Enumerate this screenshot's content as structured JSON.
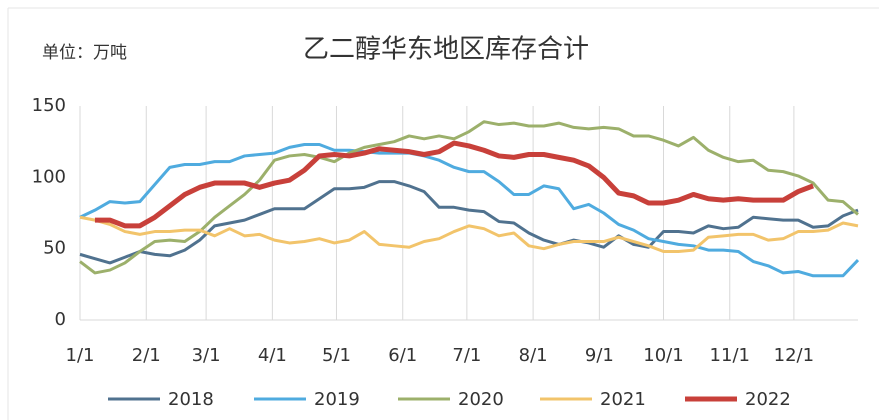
{
  "chart_data": {
    "type": "line",
    "title": "乙二醇华东地区库存合计",
    "unit_label": "单位：万吨",
    "x": [
      1,
      8,
      15,
      22,
      29,
      36,
      43,
      50,
      57,
      64,
      71,
      78,
      85,
      92,
      99,
      106,
      113,
      120,
      127,
      134,
      141,
      148,
      155,
      162,
      169,
      176,
      183,
      190,
      197,
      204,
      211,
      218,
      225,
      232,
      239,
      246,
      253,
      260,
      267,
      274,
      281,
      288,
      295,
      302,
      309,
      316,
      323,
      330,
      337,
      344,
      351,
      358,
      365
    ],
    "xlim": [
      1,
      365
    ],
    "xticks": [
      {
        "value": 1,
        "label": "1/1"
      },
      {
        "value": 32,
        "label": "2/1"
      },
      {
        "value": 60,
        "label": "3/1"
      },
      {
        "value": 91,
        "label": "4/1"
      },
      {
        "value": 121,
        "label": "5/1"
      },
      {
        "value": 152,
        "label": "6/1"
      },
      {
        "value": 182,
        "label": "7/1"
      },
      {
        "value": 213,
        "label": "8/1"
      },
      {
        "value": 244,
        "label": "9/1"
      },
      {
        "value": 274,
        "label": "10/1"
      },
      {
        "value": 305,
        "label": "11/1"
      },
      {
        "value": 335,
        "label": "12/1"
      }
    ],
    "ylim": [
      0,
      150
    ],
    "yticks": [
      0,
      50,
      100,
      150
    ],
    "grid": "x",
    "legend": "bottom",
    "series": [
      {
        "name": "2018",
        "color": "#50728f",
        "width": 3,
        "values": [
          46,
          43,
          40,
          44,
          48,
          46,
          45,
          49,
          56,
          66,
          68,
          70,
          74,
          78,
          78,
          78,
          85,
          92,
          92,
          93,
          97,
          97,
          94,
          90,
          79,
          79,
          77,
          76,
          69,
          68,
          61,
          56,
          53,
          56,
          54,
          51,
          59,
          53,
          51,
          62,
          62,
          61,
          66,
          64,
          65,
          72,
          71,
          70,
          70,
          65,
          66,
          73,
          77
        ]
      },
      {
        "name": "2019",
        "color": "#4fabdf",
        "width": 3,
        "values": [
          72,
          77,
          83,
          82,
          83,
          95,
          107,
          109,
          109,
          111,
          111,
          115,
          116,
          117,
          121,
          123,
          123,
          119,
          119,
          118,
          117,
          117,
          117,
          115,
          112,
          107,
          104,
          104,
          97,
          88,
          88,
          94,
          92,
          78,
          81,
          75,
          67,
          63,
          57,
          55,
          53,
          52,
          49,
          49,
          48,
          41,
          38,
          33,
          34,
          31,
          31,
          31,
          42
        ]
      },
      {
        "name": "2020",
        "color": "#9cb06b",
        "width": 3,
        "values": [
          41,
          33,
          35,
          40,
          48,
          55,
          56,
          55,
          62,
          72,
          80,
          88,
          98,
          112,
          115,
          116,
          114,
          111,
          117,
          121,
          123,
          125,
          129,
          127,
          129,
          127,
          132,
          139,
          137,
          138,
          136,
          136,
          138,
          135,
          134,
          135,
          134,
          129,
          129,
          126,
          122,
          128,
          119,
          114,
          111,
          112,
          105,
          104,
          101,
          96,
          84,
          83,
          74
        ]
      },
      {
        "name": "2021",
        "color": "#f2c46b",
        "width": 3,
        "values": [
          72,
          70,
          67,
          62,
          60,
          62,
          62,
          63,
          63,
          59,
          64,
          59,
          60,
          56,
          54,
          55,
          57,
          54,
          56,
          62,
          53,
          52,
          51,
          55,
          57,
          62,
          66,
          64,
          59,
          61,
          52,
          50,
          53,
          55,
          55,
          55,
          58,
          55,
          52,
          48,
          48,
          49,
          58,
          59,
          60,
          60,
          56,
          57,
          62,
          62,
          63,
          68,
          66
        ]
      },
      {
        "name": "2022",
        "color": "#c8403a",
        "width": 5,
        "values": [
          null,
          70,
          70,
          66,
          66,
          72,
          80,
          88,
          93,
          96,
          96,
          96,
          93,
          96,
          98,
          105,
          115,
          116,
          115,
          117,
          120,
          119,
          118,
          116,
          118,
          124,
          122,
          119,
          115,
          114,
          116,
          116,
          114,
          112,
          108,
          100,
          89,
          87,
          82,
          82,
          84,
          88,
          85,
          84,
          85,
          84,
          84,
          84,
          90,
          94,
          null,
          null,
          null
        ]
      }
    ]
  }
}
